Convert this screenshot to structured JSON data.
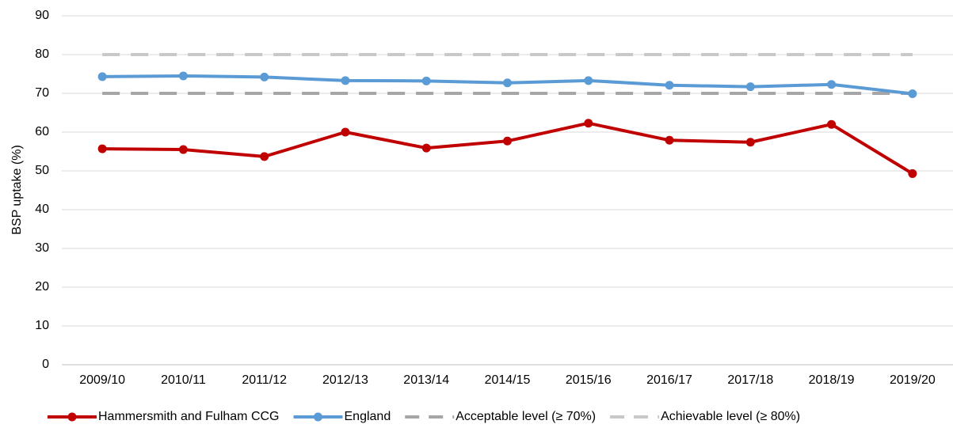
{
  "chart_data": {
    "type": "line",
    "y_label": "BSP uptake (%)",
    "categories": [
      "2009/10",
      "2010/11",
      "2011/12",
      "2012/13",
      "2013/14",
      "2014/15",
      "2015/16",
      "2016/17",
      "2017/18",
      "2018/19",
      "2019/20"
    ],
    "series": [
      {
        "name": "Hammersmith and Fulham CCG",
        "color": "#c00000",
        "markers": true,
        "line_style": "solid",
        "values": [
          55.7,
          55.5,
          53.7,
          60.0,
          55.9,
          57.7,
          62.3,
          57.9,
          57.4,
          62.0,
          49.3
        ]
      },
      {
        "name": "England",
        "color": "#5b9bd5",
        "markers": true,
        "line_style": "solid",
        "values": [
          74.3,
          74.5,
          74.2,
          73.3,
          73.2,
          72.7,
          73.3,
          72.1,
          71.7,
          72.3,
          69.9
        ]
      },
      {
        "name": "Acceptable level (≥ 70%)",
        "color": "#a6a6a6",
        "markers": false,
        "line_style": "dashed",
        "values": [
          70,
          70,
          70,
          70,
          70,
          70,
          70,
          70,
          70,
          70,
          70
        ]
      },
      {
        "name": "Achievable level (≥ 80%)",
        "color": "#c8c8c8",
        "markers": false,
        "line_style": "dashed",
        "values": [
          80,
          80,
          80,
          80,
          80,
          80,
          80,
          80,
          80,
          80,
          80
        ]
      }
    ],
    "ylim": [
      0,
      90
    ],
    "yticks": [
      0,
      10,
      20,
      30,
      40,
      50,
      60,
      70,
      80,
      90
    ],
    "grid": true,
    "legend": "bottom"
  }
}
